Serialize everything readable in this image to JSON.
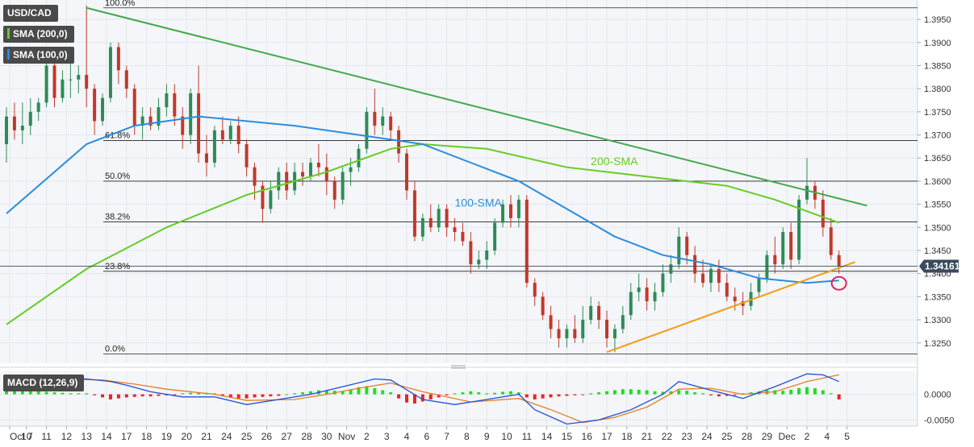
{
  "colors": {
    "background": "#f4f6f9",
    "grid": "#e4e7ec",
    "candle_up": "#2e8b57",
    "candle_down": "#c0392b",
    "sma200": "#66cc22",
    "sma100": "#2b8cdf",
    "trend_down": "#41a84a",
    "trend_up": "#f39c12",
    "fib_line": "#222222",
    "macd_line": "#1f4ed8",
    "signal_line": "#e67e22",
    "hist_up": "#22dd22",
    "hist_down": "#ee2222",
    "marker": "#e0245e",
    "badge_bg": "#4a4a4a",
    "price_tag": "#3a4a5c"
  },
  "badges": {
    "symbol": "USD/CAD",
    "sma200": "SMA (200,0)",
    "sma100": "SMA (100,0)",
    "macd": "MACD (12,26,9)"
  },
  "chart_data": [
    {
      "type": "candlestick",
      "symbol": "USD/CAD",
      "x_tick_labels": [
        "Oct 7",
        "10",
        "11",
        "12",
        "13",
        "14",
        "17",
        "18",
        "19",
        "20",
        "21",
        "24",
        "25",
        "26",
        "27",
        "28",
        "30",
        "Nov",
        "2",
        "3",
        "4",
        "6",
        "7",
        "8",
        "9",
        "10",
        "11",
        "14",
        "15",
        "16",
        "17",
        "18",
        "21",
        "22",
        "23",
        "24",
        "25",
        "28",
        "29",
        "Dec",
        "2",
        "4",
        "5"
      ],
      "y_tick_labels": [
        "1.3950",
        "1.3900",
        "1.3850",
        "1.3800",
        "1.3750",
        "1.3700",
        "1.3650",
        "1.3600",
        "1.3550",
        "1.3500",
        "1.3450",
        "1.3400",
        "1.3350",
        "1.3300",
        "1.3250"
      ],
      "ylim": [
        1.3206,
        1.3992
      ],
      "x_span": 44,
      "last_price": "1.34161",
      "last_price_value": 1.34161,
      "ohlc": [
        [
          0,
          1.368,
          1.376,
          1.364,
          1.374
        ],
        [
          1,
          1.374,
          1.377,
          1.369,
          1.371
        ],
        [
          2,
          1.371,
          1.377,
          1.368,
          1.372
        ],
        [
          3,
          1.372,
          1.378,
          1.37,
          1.375
        ],
        [
          4,
          1.375,
          1.378,
          1.373,
          1.377
        ],
        [
          5,
          1.377,
          1.386,
          1.376,
          1.385
        ],
        [
          6,
          1.385,
          1.386,
          1.376,
          1.378
        ],
        [
          7,
          1.378,
          1.384,
          1.377,
          1.382
        ],
        [
          8,
          1.382,
          1.388,
          1.378,
          1.382
        ],
        [
          9,
          1.382,
          1.385,
          1.379,
          1.383
        ],
        [
          10,
          1.383,
          1.398,
          1.376,
          1.38
        ],
        [
          11,
          1.38,
          1.381,
          1.37,
          1.373
        ],
        [
          12,
          1.373,
          1.379,
          1.372,
          1.378
        ],
        [
          13,
          1.378,
          1.39,
          1.377,
          1.389
        ],
        [
          14,
          1.389,
          1.39,
          1.381,
          1.384
        ],
        [
          15,
          1.384,
          1.385,
          1.378,
          1.38
        ],
        [
          16,
          1.38,
          1.381,
          1.37,
          1.372
        ],
        [
          17,
          1.372,
          1.376,
          1.369,
          1.374
        ],
        [
          18,
          1.374,
          1.376,
          1.371,
          1.372
        ],
        [
          19,
          1.372,
          1.378,
          1.371,
          1.376
        ],
        [
          20,
          1.376,
          1.381,
          1.374,
          1.379
        ],
        [
          21,
          1.379,
          1.381,
          1.372,
          1.374
        ],
        [
          22,
          1.374,
          1.376,
          1.367,
          1.37
        ],
        [
          23,
          1.37,
          1.38,
          1.368,
          1.379
        ],
        [
          24,
          1.379,
          1.385,
          1.364,
          1.366
        ],
        [
          25,
          1.366,
          1.37,
          1.361,
          1.364
        ],
        [
          26,
          1.364,
          1.372,
          1.363,
          1.371
        ],
        [
          27,
          1.371,
          1.374,
          1.368,
          1.369
        ],
        [
          28,
          1.369,
          1.373,
          1.368,
          1.372
        ],
        [
          29,
          1.372,
          1.374,
          1.366,
          1.368
        ],
        [
          30,
          1.368,
          1.369,
          1.361,
          1.363
        ],
        [
          31,
          1.363,
          1.364,
          1.356,
          1.359
        ],
        [
          32,
          1.359,
          1.36,
          1.351,
          1.354
        ],
        [
          33,
          1.354,
          1.36,
          1.353,
          1.358
        ],
        [
          34,
          1.358,
          1.363,
          1.356,
          1.362
        ],
        [
          35,
          1.362,
          1.364,
          1.356,
          1.358
        ],
        [
          36,
          1.358,
          1.364,
          1.357,
          1.362
        ],
        [
          37,
          1.362,
          1.364,
          1.359,
          1.361
        ],
        [
          38,
          1.361,
          1.365,
          1.36,
          1.364
        ],
        [
          39,
          1.364,
          1.368,
          1.361,
          1.363
        ],
        [
          40,
          1.363,
          1.366,
          1.357,
          1.36
        ],
        [
          41,
          1.36,
          1.361,
          1.354,
          1.356
        ],
        [
          42,
          1.356,
          1.363,
          1.355,
          1.362
        ],
        [
          43,
          1.362,
          1.365,
          1.359,
          1.363
        ],
        [
          44,
          1.363,
          1.368,
          1.362,
          1.367
        ],
        [
          45,
          1.367,
          1.376,
          1.366,
          1.375
        ],
        [
          46,
          1.375,
          1.38,
          1.37,
          1.372
        ],
        [
          47,
          1.372,
          1.376,
          1.37,
          1.374
        ],
        [
          48,
          1.374,
          1.375,
          1.369,
          1.371
        ],
        [
          49,
          1.371,
          1.372,
          1.364,
          1.366
        ],
        [
          50,
          1.366,
          1.367,
          1.356,
          1.358
        ],
        [
          51,
          1.358,
          1.36,
          1.347,
          1.348
        ],
        [
          52,
          1.348,
          1.353,
          1.347,
          1.352
        ],
        [
          53,
          1.352,
          1.355,
          1.349,
          1.35
        ],
        [
          54,
          1.35,
          1.355,
          1.349,
          1.354
        ],
        [
          55,
          1.354,
          1.355,
          1.348,
          1.35
        ],
        [
          56,
          1.35,
          1.352,
          1.347,
          1.349
        ],
        [
          57,
          1.349,
          1.351,
          1.346,
          1.347
        ],
        [
          58,
          1.347,
          1.349,
          1.34,
          1.342
        ],
        [
          59,
          1.342,
          1.345,
          1.341,
          1.343
        ],
        [
          60,
          1.343,
          1.347,
          1.341,
          1.345
        ],
        [
          61,
          1.345,
          1.352,
          1.344,
          1.351
        ],
        [
          62,
          1.351,
          1.356,
          1.35,
          1.355
        ],
        [
          63,
          1.355,
          1.357,
          1.35,
          1.352
        ],
        [
          64,
          1.352,
          1.357,
          1.35,
          1.356
        ],
        [
          65,
          1.356,
          1.357,
          1.337,
          1.338
        ],
        [
          66,
          1.338,
          1.339,
          1.333,
          1.335
        ],
        [
          67,
          1.335,
          1.336,
          1.33,
          1.331
        ],
        [
          68,
          1.331,
          1.333,
          1.326,
          1.328
        ],
        [
          69,
          1.328,
          1.33,
          1.324,
          1.326
        ],
        [
          70,
          1.326,
          1.329,
          1.324,
          1.328
        ],
        [
          71,
          1.328,
          1.331,
          1.325,
          1.326
        ],
        [
          72,
          1.326,
          1.333,
          1.325,
          1.33
        ],
        [
          73,
          1.33,
          1.335,
          1.329,
          1.333
        ],
        [
          74,
          1.333,
          1.334,
          1.328,
          1.33
        ],
        [
          75,
          1.33,
          1.332,
          1.324,
          1.326
        ],
        [
          76,
          1.326,
          1.329,
          1.323,
          1.328
        ],
        [
          77,
          1.328,
          1.333,
          1.327,
          1.331
        ],
        [
          78,
          1.331,
          1.338,
          1.33,
          1.336
        ],
        [
          79,
          1.336,
          1.34,
          1.334,
          1.337
        ],
        [
          80,
          1.337,
          1.339,
          1.332,
          1.334
        ],
        [
          81,
          1.334,
          1.338,
          1.332,
          1.336
        ],
        [
          82,
          1.336,
          1.342,
          1.335,
          1.34
        ],
        [
          83,
          1.34,
          1.344,
          1.338,
          1.342
        ],
        [
          84,
          1.342,
          1.35,
          1.341,
          1.348
        ],
        [
          85,
          1.348,
          1.349,
          1.342,
          1.344
        ],
        [
          86,
          1.344,
          1.346,
          1.338,
          1.34
        ],
        [
          87,
          1.34,
          1.343,
          1.337,
          1.338
        ],
        [
          88,
          1.338,
          1.342,
          1.336,
          1.341
        ],
        [
          89,
          1.341,
          1.343,
          1.336,
          1.338
        ],
        [
          90,
          1.338,
          1.34,
          1.334,
          1.335
        ],
        [
          91,
          1.335,
          1.337,
          1.332,
          1.334
        ],
        [
          92,
          1.334,
          1.336,
          1.331,
          1.333
        ],
        [
          93,
          1.333,
          1.338,
          1.332,
          1.336
        ],
        [
          94,
          1.336,
          1.34,
          1.335,
          1.339
        ],
        [
          95,
          1.339,
          1.345,
          1.338,
          1.344
        ],
        [
          96,
          1.344,
          1.348,
          1.34,
          1.342
        ],
        [
          97,
          1.342,
          1.35,
          1.341,
          1.349
        ],
        [
          98,
          1.349,
          1.351,
          1.341,
          1.343
        ],
        [
          99,
          1.343,
          1.357,
          1.342,
          1.356
        ],
        [
          100,
          1.356,
          1.365,
          1.355,
          1.359
        ],
        [
          101,
          1.359,
          1.36,
          1.354,
          1.356
        ],
        [
          102,
          1.356,
          1.358,
          1.348,
          1.35
        ],
        [
          103,
          1.35,
          1.352,
          1.343,
          1.344
        ],
        [
          104,
          1.344,
          1.345,
          1.34,
          1.3416
        ]
      ],
      "sma200": [
        [
          0,
          1.329
        ],
        [
          10,
          1.341
        ],
        [
          20,
          1.35
        ],
        [
          30,
          1.357
        ],
        [
          40,
          1.362
        ],
        [
          48,
          1.367
        ],
        [
          52,
          1.368
        ],
        [
          60,
          1.367
        ],
        [
          70,
          1.363
        ],
        [
          80,
          1.361
        ],
        [
          90,
          1.359
        ],
        [
          96,
          1.356
        ],
        [
          104,
          1.351
        ]
      ],
      "sma100": [
        [
          0,
          1.353
        ],
        [
          6,
          1.362
        ],
        [
          10,
          1.368
        ],
        [
          16,
          1.372
        ],
        [
          24,
          1.374
        ],
        [
          36,
          1.372
        ],
        [
          48,
          1.369
        ],
        [
          52,
          1.368
        ],
        [
          58,
          1.364
        ],
        [
          64,
          1.36
        ],
        [
          70,
          1.354
        ],
        [
          76,
          1.348
        ],
        [
          82,
          1.344
        ],
        [
          88,
          1.342
        ],
        [
          94,
          1.339
        ],
        [
          100,
          1.338
        ],
        [
          104,
          1.3385
        ]
      ],
      "fib_levels": [
        {
          "label": "100.0%",
          "value": 1.3975
        },
        {
          "label": "61.8%",
          "value": 1.3688
        },
        {
          "label": "50.0%",
          "value": 1.36
        },
        {
          "label": "38.2%",
          "value": 1.3512
        },
        {
          "label": "23.8%",
          "value": 1.3405
        },
        {
          "label": "0.0%",
          "value": 1.3226
        }
      ],
      "trendlines": [
        {
          "name": "descending",
          "from": [
            10,
            1.3975
          ],
          "to": [
            107.5,
            1.3547
          ]
        },
        {
          "name": "ascending",
          "from": [
            75,
            1.323
          ],
          "to": [
            106,
            1.3425
          ]
        }
      ],
      "annotations": [
        {
          "text": "200-SMA",
          "x": 73,
          "y": 1.3635
        },
        {
          "text": "100-SMA",
          "x": 56,
          "y": 1.3545
        }
      ],
      "marker": {
        "x": 104,
        "y": 1.3379
      }
    },
    {
      "type": "macd",
      "title": "MACD (12,26,9)",
      "y_tick_labels": [
        "0.0000",
        "-0.0050"
      ],
      "ylim": [
        -0.0062,
        0.0045
      ],
      "macd": [
        [
          0,
          0.003
        ],
        [
          5,
          0.0032
        ],
        [
          10,
          0.003
        ],
        [
          13,
          0.0025
        ],
        [
          15,
          0.0018
        ],
        [
          18,
          0.0005
        ],
        [
          22,
          -0.0005
        ],
        [
          26,
          -0.0005
        ],
        [
          30,
          -0.002
        ],
        [
          34,
          -0.001
        ],
        [
          38,
          0.0
        ],
        [
          42,
          0.0015
        ],
        [
          46,
          0.003
        ],
        [
          48,
          0.0028
        ],
        [
          52,
          -0.001
        ],
        [
          56,
          -0.002
        ],
        [
          60,
          -0.001
        ],
        [
          64,
          0.0
        ],
        [
          66,
          -0.003
        ],
        [
          70,
          -0.0058
        ],
        [
          74,
          -0.005
        ],
        [
          78,
          -0.003
        ],
        [
          82,
          0.0
        ],
        [
          84,
          0.0025
        ],
        [
          88,
          0.0008
        ],
        [
          92,
          -0.0008
        ],
        [
          96,
          0.0015
        ],
        [
          100,
          0.004
        ],
        [
          102,
          0.0038
        ],
        [
          104,
          0.0025
        ]
      ],
      "signal": [
        [
          0,
          0.0025
        ],
        [
          6,
          0.003
        ],
        [
          12,
          0.0028
        ],
        [
          16,
          0.002
        ],
        [
          20,
          0.001
        ],
        [
          26,
          0.0
        ],
        [
          30,
          -0.0012
        ],
        [
          36,
          -0.001
        ],
        [
          40,
          0.0
        ],
        [
          44,
          0.0012
        ],
        [
          48,
          0.0022
        ],
        [
          52,
          0.0005
        ],
        [
          58,
          -0.0015
        ],
        [
          64,
          -0.0008
        ],
        [
          68,
          -0.003
        ],
        [
          72,
          -0.0055
        ],
        [
          76,
          -0.0045
        ],
        [
          80,
          -0.0025
        ],
        [
          84,
          0.001
        ],
        [
          88,
          0.0012
        ],
        [
          92,
          0.0
        ],
        [
          96,
          0.0005
        ],
        [
          100,
          0.0025
        ],
        [
          104,
          0.0038
        ]
      ],
      "histogram": [
        0.0007,
        0.0008,
        0.0008,
        0.0007,
        0.0006,
        0.0005,
        0.0004,
        0.0003,
        0.0002,
        0.0002,
        0.0002,
        -0.0002,
        -0.0006,
        -0.001,
        -0.0008,
        -0.0006,
        -0.0005,
        -0.0004,
        -0.0004,
        -0.0003,
        -0.0002,
        -0.0001,
        0.0002,
        0.0003,
        0.0004,
        0.0003,
        0.0002,
        -0.0003,
        -0.0006,
        -0.0008,
        -0.0008,
        -0.0006,
        -0.0005,
        -0.0004,
        -0.0003,
        0.0,
        0.0002,
        0.0004,
        0.0006,
        0.0008,
        0.0008,
        0.0007,
        0.0006,
        0.001,
        0.0014,
        0.0016,
        0.0012,
        0.0008,
        0.0004,
        -0.0008,
        -0.0016,
        -0.0018,
        -0.0014,
        -0.001,
        -0.0006,
        -0.0002,
        0.0002,
        0.0004,
        0.0006,
        0.0004,
        0.0002,
        0.0003,
        0.0005,
        0.0006,
        0.0004,
        -0.0006,
        -0.001,
        -0.0008,
        -0.0006,
        -0.0004,
        -0.0003,
        -0.0002,
        -0.0001,
        0.0002,
        0.0004,
        0.0006,
        0.0008,
        0.001,
        0.001,
        0.0009,
        0.0008,
        0.0006,
        0.0005,
        0.0006,
        0.0008,
        0.0007,
        0.0004,
        0.0002,
        -0.0002,
        -0.0004,
        -0.0003,
        -0.0002,
        0.0002,
        0.0004,
        0.0006,
        0.0008,
        0.0008,
        0.0007,
        0.0009,
        0.0012,
        0.0014,
        0.0012,
        0.0008,
        0.0002,
        -0.001
      ]
    }
  ]
}
